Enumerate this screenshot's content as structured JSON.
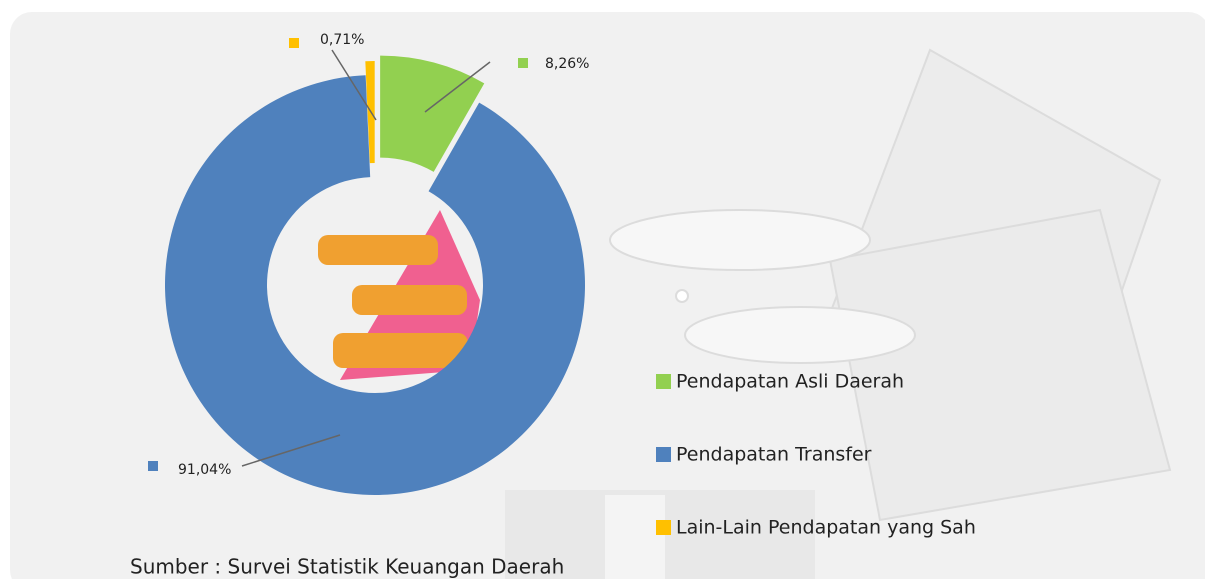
{
  "chart_data": {
    "type": "pie",
    "categories": [
      "Pendapatan Asli Daerah",
      "Pendapatan Transfer",
      "Lain-Lain Pendapatan yang Sah"
    ],
    "values": [
      8.26,
      91.04,
      0.71
    ],
    "value_labels": [
      "8,26%",
      "91,04%",
      "0,71%"
    ],
    "colors": [
      "#92d050",
      "#4f81bd",
      "#ffc000"
    ],
    "donut": true,
    "legend": "right",
    "source": "Sumber : Survei Statistik Keuangan Daerah"
  }
}
